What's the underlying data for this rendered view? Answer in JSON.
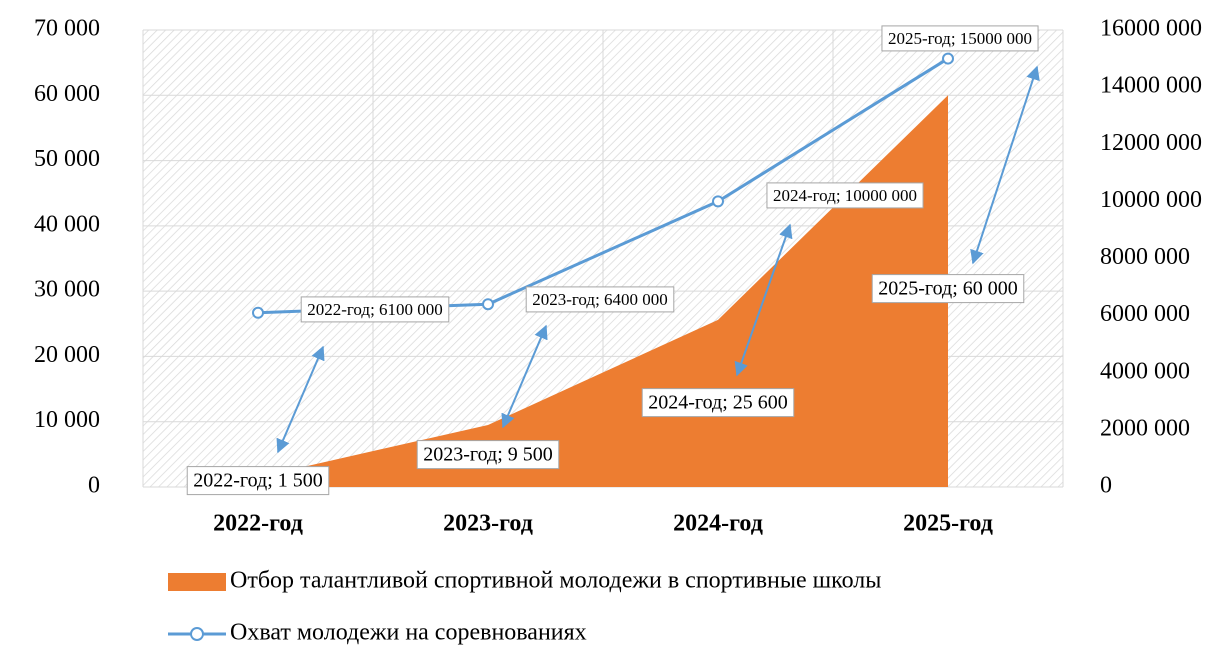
{
  "chart_data": {
    "type": "combo",
    "categories": [
      "2022-год",
      "2023-год",
      "2024-год",
      "2025-год"
    ],
    "series": [
      {
        "name": "Отбор талантливой спортивной молодежи в спортивные школы",
        "type": "area",
        "color": "#ed7d31",
        "values": [
          1500,
          9500,
          25600,
          60000
        ],
        "value_labels": [
          "2022-год; 1 500",
          "2023-год; 9 500",
          "2024-год; 25 600",
          "2025-год; 60 000"
        ]
      },
      {
        "name": "Охват молодежи на соревнованиях",
        "type": "line",
        "axis": "y2",
        "color": "#5b9bd5",
        "values": [
          6100000,
          6400000,
          10000000,
          15000000
        ],
        "value_labels": [
          "2022-год; 6100 000",
          "2023-год; 6400 000",
          "2024-год; 10000 000",
          "2025-год; 15000 000"
        ]
      }
    ],
    "ylim": [
      0,
      70000
    ],
    "yticks": [
      0,
      {
        "value": 10000,
        "label": "10 000"
      },
      {
        "value": 20000,
        "label": "20 000"
      },
      {
        "value": 30000,
        "label": "30 000"
      },
      {
        "value": 40000,
        "label": "40 000"
      },
      {
        "value": 50000,
        "label": "50 000"
      },
      {
        "value": 60000,
        "label": "60 000"
      },
      {
        "value": 70000,
        "label": "70 000"
      }
    ],
    "y2lim": [
      0,
      16000000
    ],
    "y2ticks": [
      0,
      {
        "value": 2000000,
        "label": "2000 000"
      },
      {
        "value": 4000000,
        "label": "4000 000"
      },
      {
        "value": 6000000,
        "label": "6000 000"
      },
      {
        "value": 8000000,
        "label": "8000 000"
      },
      {
        "value": 10000000,
        "label": "10000 000"
      },
      {
        "value": 12000000,
        "label": "12000 000"
      },
      {
        "value": 14000000,
        "label": "14000 000"
      },
      {
        "value": 16000000,
        "label": "16000 000"
      }
    ],
    "grid": true,
    "legend": "bottom"
  }
}
